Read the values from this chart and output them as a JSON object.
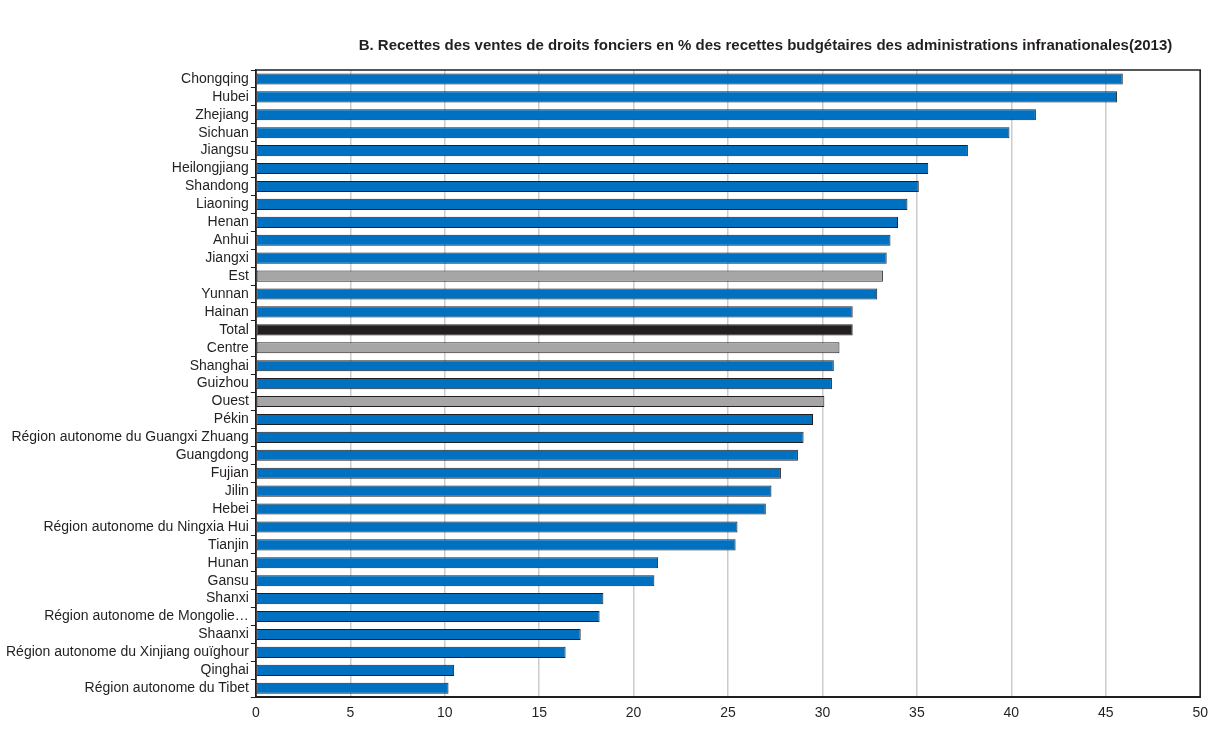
{
  "chart_data": {
    "type": "bar",
    "orientation": "horizontal",
    "title": "B. Recettes des ventes de droits fonciers en % des recettes budgétaires des administrations infranationales(2013)",
    "categories": [
      "Chongqing",
      "Hubei",
      "Zhejiang",
      "Sichuan",
      "Jiangsu",
      "Heilongjiang",
      "Shandong",
      "Liaoning",
      "Henan",
      "Anhui",
      "Jiangxi",
      "Est",
      "Yunnan",
      "Hainan",
      "Total",
      "Centre",
      "Shanghai",
      "Guizhou",
      "Ouest",
      "Pékin",
      "Région autonome du Guangxi Zhuang",
      "Guangdong",
      "Fujian",
      "Jilin",
      "Hebei",
      "Région autonome du Ningxia Hui",
      "Tianjin",
      "Hunan",
      "Gansu",
      "Shanxi",
      "Région autonome de Mongolie…",
      "Shaanxi",
      "Région autonome du Xinjiang ouïghour",
      "Qinghai",
      "Région autonome du Tibet"
    ],
    "values": [
      45.9,
      45.6,
      41.3,
      39.9,
      37.7,
      35.6,
      35.1,
      34.5,
      34.0,
      33.6,
      33.4,
      33.2,
      32.9,
      31.6,
      31.6,
      30.9,
      30.6,
      30.5,
      30.1,
      29.5,
      29.0,
      28.7,
      27.8,
      27.3,
      27.0,
      25.5,
      25.4,
      21.3,
      21.1,
      18.4,
      18.2,
      17.2,
      16.4,
      10.5,
      10.2
    ],
    "colors": [
      "#0070c0",
      "#0070c0",
      "#0070c0",
      "#0070c0",
      "#0070c0",
      "#0070c0",
      "#0070c0",
      "#0070c0",
      "#0070c0",
      "#0070c0",
      "#0070c0",
      "#a6a6a6",
      "#0070c0",
      "#0070c0",
      "#231f20",
      "#a6a6a6",
      "#0070c0",
      "#0070c0",
      "#a6a6a6",
      "#0070c0",
      "#0070c0",
      "#0070c0",
      "#0070c0",
      "#0070c0",
      "#0070c0",
      "#0070c0",
      "#0070c0",
      "#0070c0",
      "#0070c0",
      "#0070c0",
      "#0070c0",
      "#0070c0",
      "#0070c0",
      "#0070c0",
      "#0070c0"
    ],
    "xlim": [
      0,
      50
    ],
    "xticks": [
      0,
      5,
      10,
      15,
      20,
      25,
      30,
      35,
      40,
      45,
      50
    ],
    "grid": "x",
    "legend": false
  }
}
